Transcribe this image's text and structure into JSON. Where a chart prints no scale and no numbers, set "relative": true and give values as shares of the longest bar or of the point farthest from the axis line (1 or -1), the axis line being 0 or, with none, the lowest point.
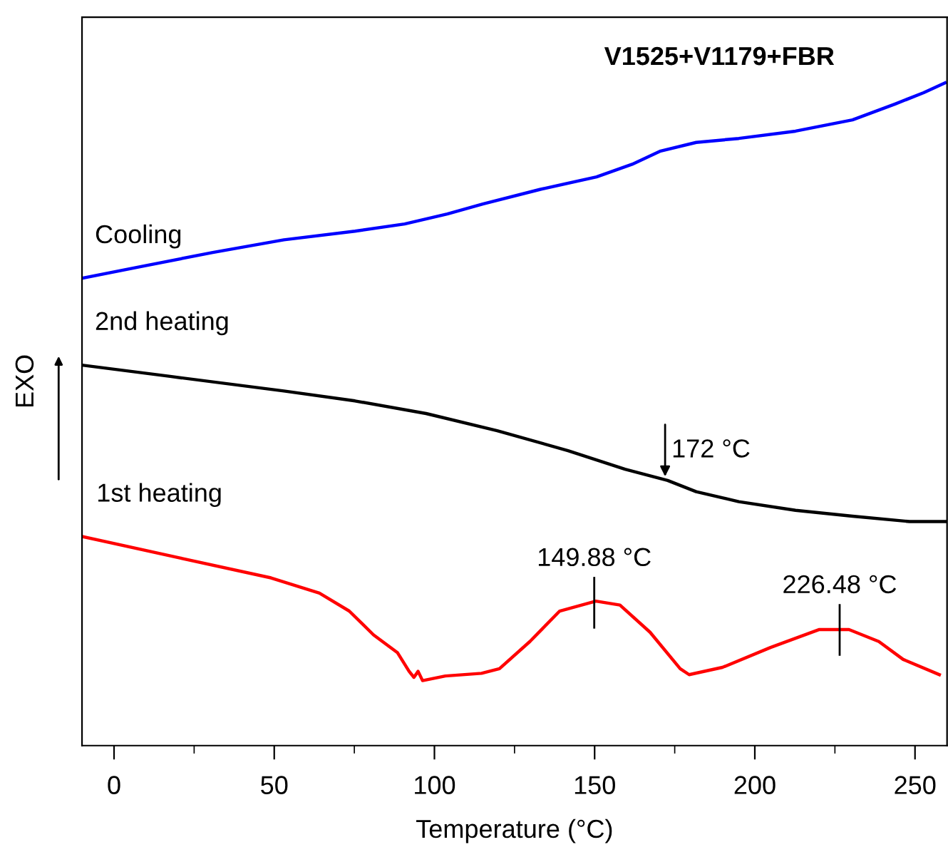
{
  "chart_data": {
    "type": "line",
    "title": "V1525+V1179+FBR",
    "xlabel": "Temperature (°C)",
    "ylabel": "EXO",
    "relative": true,
    "xlim": [
      -10,
      260
    ],
    "xticks": [
      0,
      {
        "value": 25,
        "label": null
      },
      50,
      {
        "value": 75,
        "label": null
      },
      100,
      {
        "value": 125,
        "label": null
      },
      150,
      {
        "value": 175,
        "label": null
      },
      200,
      {
        "value": 225,
        "label": null
      },
      250
    ],
    "series": [
      {
        "name": "Cooling",
        "color": "#0000ff",
        "x": [
          -10,
          8.7,
          30.8,
          53.0,
          75.2,
          90.7,
          104.0,
          115.1,
          132.9,
          150.6,
          161.7,
          170.6,
          181.7,
          195.0,
          212.7,
          230.5,
          243.8,
          252.7,
          259.4
        ],
        "values": [
          0.705,
          0.723,
          0.744,
          0.763,
          0.776,
          0.787,
          0.802,
          0.817,
          0.839,
          0.858,
          0.877,
          0.897,
          0.91,
          0.916,
          0.927,
          0.944,
          0.968,
          0.985,
          1.0
        ]
      },
      {
        "name": "2nd heating",
        "color": "#000000",
        "x": [
          -10,
          17.5,
          53.0,
          75.2,
          97.4,
          119.6,
          141.7,
          159.5,
          172.8,
          181.7,
          195.0,
          212.7,
          230.5,
          248.3,
          259.4
        ],
        "values": [
          0.574,
          0.557,
          0.535,
          0.52,
          0.501,
          0.475,
          0.445,
          0.417,
          0.4,
          0.383,
          0.368,
          0.355,
          0.346,
          0.338,
          0.338
        ]
      },
      {
        "name": "1st heating",
        "color": "#ff0000",
        "x": [
          -9.5,
          20.6,
          49.0,
          64.1,
          73.4,
          81.0,
          88.5,
          92.1,
          93.6,
          94.9,
          96.3,
          103.4,
          114.7,
          120.3,
          129.8,
          139.1,
          150.4,
          157.9,
          167.3,
          176.7,
          179.5,
          189.9,
          204.9,
          220.0,
          229.4,
          238.7,
          246.3,
          257.6
        ],
        "values": [
          0.315,
          0.283,
          0.253,
          0.23,
          0.203,
          0.167,
          0.14,
          0.112,
          0.103,
          0.112,
          0.098,
          0.105,
          0.109,
          0.116,
          0.157,
          0.203,
          0.218,
          0.212,
          0.171,
          0.116,
          0.107,
          0.118,
          0.148,
          0.175,
          0.175,
          0.157,
          0.13,
          0.107
        ]
      }
    ],
    "annotations": [
      {
        "text": "172 °C",
        "x": 172,
        "y": 0.4
      },
      {
        "text": "149.88 °C",
        "x": 149.88,
        "y": 0.218
      },
      {
        "text": "226.48 °C",
        "x": 226.48,
        "y": 0.177
      }
    ],
    "grid": false,
    "legend": false,
    "marker": "none",
    "line_style": "solid"
  }
}
